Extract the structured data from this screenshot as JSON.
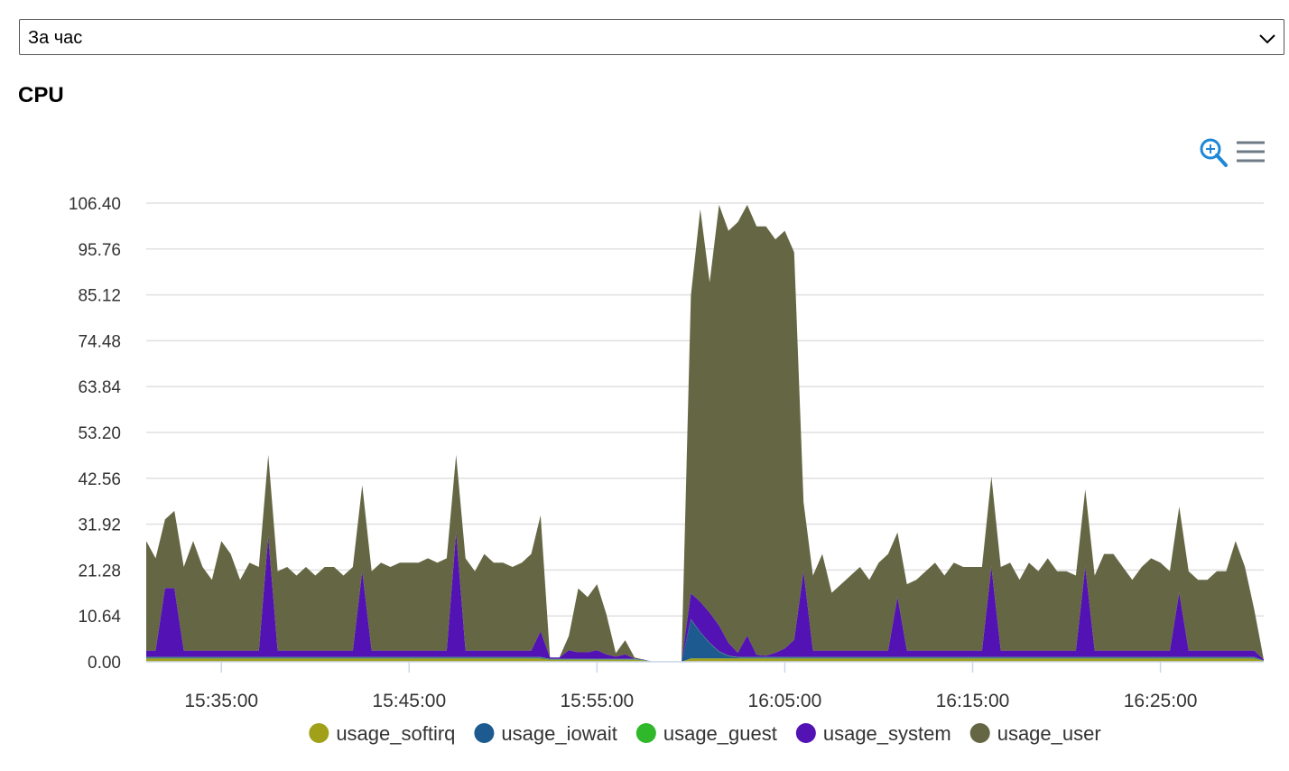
{
  "selector": {
    "value": "За час"
  },
  "chart_data": {
    "type": "stacked-area",
    "title": "CPU",
    "x": [
      "15:31:00",
      "15:31:30",
      "15:32:00",
      "15:32:30",
      "15:33:00",
      "15:33:30",
      "15:34:00",
      "15:34:30",
      "15:35:00",
      "15:35:30",
      "15:36:00",
      "15:36:30",
      "15:37:00",
      "15:37:30",
      "15:38:00",
      "15:38:30",
      "15:39:00",
      "15:39:30",
      "15:40:00",
      "15:40:30",
      "15:41:00",
      "15:41:30",
      "15:42:00",
      "15:42:30",
      "15:43:00",
      "15:43:30",
      "15:44:00",
      "15:44:30",
      "15:45:00",
      "15:45:30",
      "15:46:00",
      "15:46:30",
      "15:47:00",
      "15:47:30",
      "15:48:00",
      "15:48:30",
      "15:49:00",
      "15:49:30",
      "15:50:00",
      "15:50:30",
      "15:51:00",
      "15:51:30",
      "15:52:00",
      "15:52:30",
      "15:53:00",
      "15:53:30",
      "15:54:00",
      "15:54:30",
      "15:55:00",
      "15:55:30",
      "15:56:00",
      "15:56:30",
      "15:57:00",
      "15:57:30",
      "15:58:00",
      "15:58:30",
      "15:59:00",
      "15:59:30",
      "16:00:00",
      "16:00:30",
      "16:01:00",
      "16:01:30",
      "16:02:00",
      "16:02:30",
      "16:03:00",
      "16:03:30",
      "16:04:00",
      "16:04:30",
      "16:05:00",
      "16:05:30",
      "16:06:00",
      "16:06:30",
      "16:07:00",
      "16:07:30",
      "16:08:00",
      "16:08:30",
      "16:09:00",
      "16:09:30",
      "16:10:00",
      "16:10:30",
      "16:11:00",
      "16:11:30",
      "16:12:00",
      "16:12:30",
      "16:13:00",
      "16:13:30",
      "16:14:00",
      "16:14:30",
      "16:15:00",
      "16:15:30",
      "16:16:00",
      "16:16:30",
      "16:17:00",
      "16:17:30",
      "16:18:00",
      "16:18:30",
      "16:19:00",
      "16:19:30",
      "16:20:00",
      "16:20:30",
      "16:21:00",
      "16:21:30",
      "16:22:00",
      "16:22:30",
      "16:23:00",
      "16:23:30",
      "16:24:00",
      "16:24:30",
      "16:25:00",
      "16:25:30",
      "16:26:00",
      "16:26:30",
      "16:27:00",
      "16:27:30",
      "16:28:00",
      "16:28:30",
      "16:29:00",
      "16:29:30",
      "16:30:00",
      "16:30:30"
    ],
    "xlim": [
      "15:31:00",
      "16:30:30"
    ],
    "xticks": [
      "15:35:00",
      "15:45:00",
      "15:55:00",
      "16:05:00",
      "16:15:00",
      "16:25:00"
    ],
    "ylim": [
      0,
      106.4
    ],
    "yticks": [
      {
        "value": 0,
        "label": "0.00"
      },
      10.64,
      21.28,
      31.92,
      42.56,
      {
        "value": 53.2,
        "label": "53.20"
      },
      63.84,
      74.48,
      85.12,
      95.76,
      {
        "value": 106.4,
        "label": "106.40"
      }
    ],
    "grid": true,
    "series": [
      {
        "name": "usage_softirq",
        "color": "#a0a019",
        "values": [
          0.8,
          0.8,
          0.8,
          0.8,
          0.8,
          0.8,
          0.8,
          0.8,
          0.8,
          0.8,
          0.8,
          0.8,
          0.8,
          0.8,
          0.8,
          0.8,
          0.8,
          0.8,
          0.8,
          0.8,
          0.8,
          0.8,
          0.8,
          0.8,
          0.8,
          0.8,
          0.8,
          0.8,
          0.8,
          0.8,
          0.8,
          0.8,
          0.8,
          0.8,
          0.8,
          0.8,
          0.8,
          0.8,
          0.8,
          0.8,
          0.8,
          0.8,
          0.8,
          0.5,
          0.5,
          0.5,
          0.5,
          0.5,
          0.5,
          0.5,
          0.5,
          0.5,
          0.5,
          0.3,
          0,
          0,
          0,
          0,
          0.8,
          0.8,
          0.8,
          0.8,
          0.8,
          0.8,
          0.8,
          0.8,
          0.8,
          0.8,
          0.8,
          0.8,
          0.8,
          0.8,
          0.8,
          0.8,
          0.8,
          0.8,
          0.8,
          0.8,
          0.8,
          0.8,
          0.8,
          0.8,
          0.8,
          0.8,
          0.8,
          0.8,
          0.8,
          0.8,
          0.8,
          0.8,
          0.8,
          0.8,
          0.8,
          0.8,
          0.8,
          0.8,
          0.8,
          0.8,
          0.8,
          0.8,
          0.8,
          0.8,
          0.8,
          0.8,
          0.8,
          0.8,
          0.8,
          0.8,
          0.8,
          0.8,
          0.8,
          0.8,
          0.8,
          0.8,
          0.8,
          0.8,
          0.8,
          0.8,
          0.8,
          0.2
        ]
      },
      {
        "name": "usage_iowait",
        "color": "#1c5a8f",
        "values": [
          0.2,
          0.2,
          0.2,
          0.2,
          0.2,
          0.2,
          0.2,
          0.2,
          0.2,
          0.2,
          0.2,
          0.2,
          0.2,
          0.2,
          0.2,
          0.2,
          0.2,
          0.2,
          0.2,
          0.2,
          0.2,
          0.2,
          0.2,
          0.2,
          0.2,
          0.2,
          0.2,
          0.2,
          0.2,
          0.2,
          0.2,
          0.2,
          0.2,
          0.2,
          0.2,
          0.2,
          0.2,
          0.2,
          0.2,
          0.2,
          0.2,
          0.2,
          0.2,
          0.1,
          0.1,
          0.1,
          0.1,
          0.1,
          0.1,
          0.1,
          0.1,
          0.1,
          0.1,
          0,
          0,
          0,
          0,
          0,
          9,
          6,
          3.5,
          1.5,
          0.5,
          0.2,
          0.2,
          0.2,
          0.2,
          0.2,
          0.2,
          0.2,
          0.2,
          0.2,
          0.2,
          0.2,
          0.2,
          0.2,
          0.2,
          0.2,
          0.2,
          0.2,
          0.2,
          0.2,
          0.2,
          0.2,
          0.2,
          0.2,
          0.2,
          0.2,
          0.2,
          0.2,
          0.2,
          0.2,
          0.2,
          0.2,
          0.2,
          0.2,
          0.2,
          0.2,
          0.2,
          0.2,
          0.2,
          0.2,
          0.2,
          0.2,
          0.2,
          0.2,
          0.2,
          0.2,
          0.2,
          0.2,
          0.2,
          0.2,
          0.2,
          0.2,
          0.2,
          0.2,
          0.2,
          0.2,
          0.2,
          0
        ]
      },
      {
        "name": "usage_guest",
        "color": "#2fb82a",
        "values": [
          0.1,
          0.1,
          0.1,
          0.1,
          0.1,
          0.1,
          0.1,
          0.1,
          0.1,
          0.1,
          0.1,
          0.1,
          0.1,
          0.1,
          0.1,
          0.1,
          0.1,
          0.1,
          0.1,
          0.1,
          0.1,
          0.1,
          0.1,
          0.1,
          0.1,
          0.1,
          0.1,
          0.1,
          0.1,
          0.1,
          0.1,
          0.1,
          0.1,
          0.1,
          0.1,
          0.1,
          0.1,
          0.1,
          0.1,
          0.1,
          0.1,
          0.1,
          0.1,
          0.1,
          0.1,
          0.1,
          0.1,
          0.1,
          0.1,
          0.1,
          0.1,
          0.1,
          0.1,
          0.1,
          0,
          0,
          0,
          0,
          0.1,
          0.1,
          0.1,
          0.1,
          0.1,
          0.1,
          0.1,
          0.1,
          0.1,
          0.1,
          0.1,
          0.1,
          0.1,
          0.1,
          0.1,
          0.1,
          0.1,
          0.1,
          0.1,
          0.1,
          0.1,
          0.1,
          0.1,
          0.1,
          0.1,
          0.1,
          0.1,
          0.1,
          0.1,
          0.1,
          0.1,
          0.1,
          0.1,
          0.1,
          0.1,
          0.1,
          0.1,
          0.1,
          0.1,
          0.1,
          0.1,
          0.1,
          0.1,
          0.1,
          0.1,
          0.1,
          0.1,
          0.1,
          0.1,
          0.1,
          0.1,
          0.1,
          0.1,
          0.1,
          0.1,
          0.1,
          0.1,
          0.1,
          0.1,
          0.1,
          0.1,
          0.1
        ]
      },
      {
        "name": "usage_system",
        "color": "#5312b4",
        "values": [
          1.5,
          1.5,
          16,
          16,
          1.5,
          1.5,
          1.5,
          1.5,
          1.5,
          1.5,
          1.5,
          1.5,
          1.5,
          28,
          1.5,
          1.5,
          1.5,
          1.5,
          1.5,
          1.5,
          1.5,
          1.5,
          1.5,
          20,
          1.5,
          1.5,
          1.5,
          1.5,
          1.5,
          1.5,
          1.5,
          1.5,
          1.5,
          29,
          1.5,
          1.5,
          1.5,
          1.5,
          1.5,
          1.5,
          1.5,
          1.5,
          6,
          0.3,
          0.3,
          2,
          1.5,
          1.5,
          2,
          1,
          0.5,
          1,
          0.1,
          0.1,
          0,
          0,
          0,
          0,
          6,
          7,
          7,
          6,
          3,
          1,
          5,
          0.5,
          0.3,
          1,
          2,
          4,
          20,
          1.5,
          1.5,
          1.5,
          1.5,
          1.5,
          1.5,
          1.5,
          1.5,
          1.5,
          14,
          1.5,
          1.5,
          1.5,
          1.5,
          1.5,
          1.5,
          1.5,
          1.5,
          1.5,
          21,
          1.5,
          1.5,
          1.5,
          1.5,
          1.5,
          1.5,
          1.5,
          1.5,
          1.5,
          21,
          1.5,
          1.5,
          1.5,
          1.5,
          1.5,
          1.5,
          1.5,
          1.5,
          1.5,
          15,
          1.5,
          1.5,
          1.5,
          1.5,
          1.5,
          1.5,
          1.5,
          1.5,
          0.2
        ]
      },
      {
        "name": "usage_user",
        "color": "#656744",
        "values": [
          25.4,
          21.4,
          15.9,
          17.9,
          19.4,
          25.4,
          19.4,
          16.4,
          25.4,
          22.4,
          16.4,
          20.4,
          19.4,
          18.9,
          18.4,
          19.4,
          17.4,
          19.4,
          17.4,
          19.4,
          19.4,
          17.4,
          19.4,
          19.9,
          18.4,
          20.4,
          19.4,
          20.4,
          20.4,
          20.4,
          21.4,
          20.4,
          21.4,
          17.9,
          21.4,
          18.4,
          22.4,
          20.4,
          20.4,
          19.4,
          20.4,
          22.4,
          26.9,
          0,
          0,
          3.3,
          14.8,
          12.8,
          15.3,
          9.3,
          0.8,
          3.3,
          0.2,
          0,
          0,
          0,
          0,
          0,
          69.1,
          91.1,
          76.6,
          97.6,
          95.6,
          99.9,
          99.9,
          99.4,
          99.6,
          95.9,
          96.9,
          89.9,
          15.9,
          17.4,
          22.4,
          13.4,
          15.4,
          17.4,
          19.4,
          16.4,
          20.4,
          22.4,
          14.9,
          15.4,
          16.4,
          18.4,
          20.4,
          17.4,
          20.4,
          19.4,
          19.4,
          19.4,
          20.9,
          19.4,
          20.4,
          16.4,
          20.4,
          18.4,
          21.4,
          18.4,
          18.4,
          17.4,
          17.9,
          17.4,
          22.4,
          22.4,
          19.4,
          16.4,
          19.4,
          21.4,
          20.4,
          18.4,
          19.9,
          18.4,
          16.4,
          16.4,
          18.4,
          18.4,
          25.4,
          19.4,
          9.4,
          0
        ]
      }
    ]
  }
}
